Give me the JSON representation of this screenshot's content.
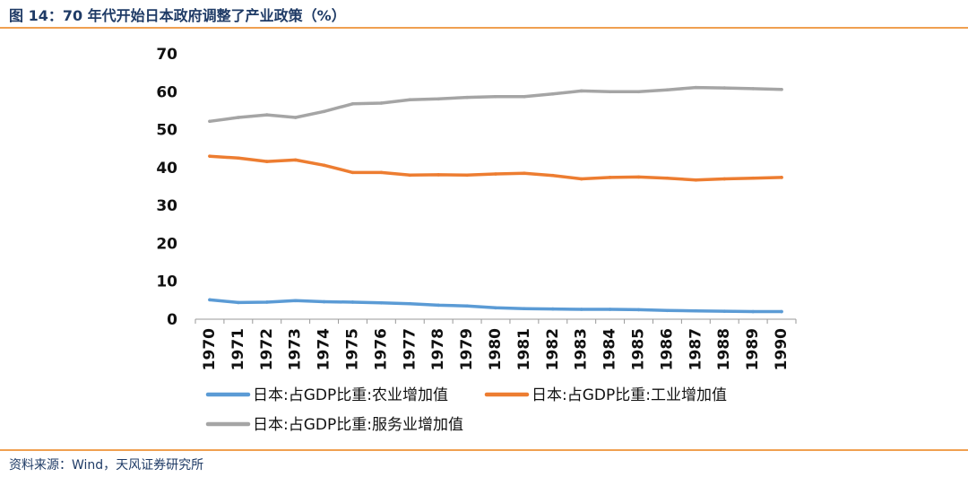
{
  "header": {
    "figure_title": "图 14：70 年代开始日本政府调整了产业政策（%）"
  },
  "footer": {
    "source": "资料来源：Wind，天风证券研究所"
  },
  "colors": {
    "accent_rule": "#f0a050",
    "title_text": "#1f3b66"
  },
  "chart_data": {
    "type": "line",
    "ylim": [
      0,
      70
    ],
    "yticks": [
      0,
      10,
      20,
      30,
      40,
      50,
      60,
      70
    ],
    "grid": false,
    "legend_position": "bottom",
    "x": [
      "1970",
      "1971",
      "1972",
      "1973",
      "1974",
      "1975",
      "1976",
      "1977",
      "1978",
      "1979",
      "1980",
      "1981",
      "1982",
      "1983",
      "1984",
      "1985",
      "1986",
      "1987",
      "1988",
      "1989",
      "1990"
    ],
    "series": [
      {
        "name": "日本:占GDP比重:农业增加值",
        "color": "#5b9bd5",
        "values": [
          5.1,
          4.4,
          4.5,
          4.9,
          4.6,
          4.5,
          4.3,
          4.1,
          3.7,
          3.5,
          3.0,
          2.8,
          2.7,
          2.6,
          2.6,
          2.5,
          2.3,
          2.2,
          2.1,
          2.0,
          2.0
        ]
      },
      {
        "name": "日本:占GDP比重:工业增加值",
        "color": "#ed7d31",
        "values": [
          43.0,
          42.5,
          41.6,
          42.0,
          40.6,
          38.7,
          38.7,
          38.0,
          38.1,
          38.0,
          38.3,
          38.5,
          37.9,
          37.0,
          37.4,
          37.5,
          37.2,
          36.7,
          37.0,
          37.2,
          37.4
        ]
      },
      {
        "name": "日本:占GDP比重:服务业增加值",
        "color": "#a5a5a5",
        "values": [
          52.2,
          53.2,
          53.9,
          53.2,
          54.8,
          56.8,
          57.0,
          57.9,
          58.1,
          58.5,
          58.7,
          58.7,
          59.4,
          60.2,
          60.0,
          60.0,
          60.5,
          61.1,
          61.0,
          60.8,
          60.6
        ]
      }
    ]
  }
}
